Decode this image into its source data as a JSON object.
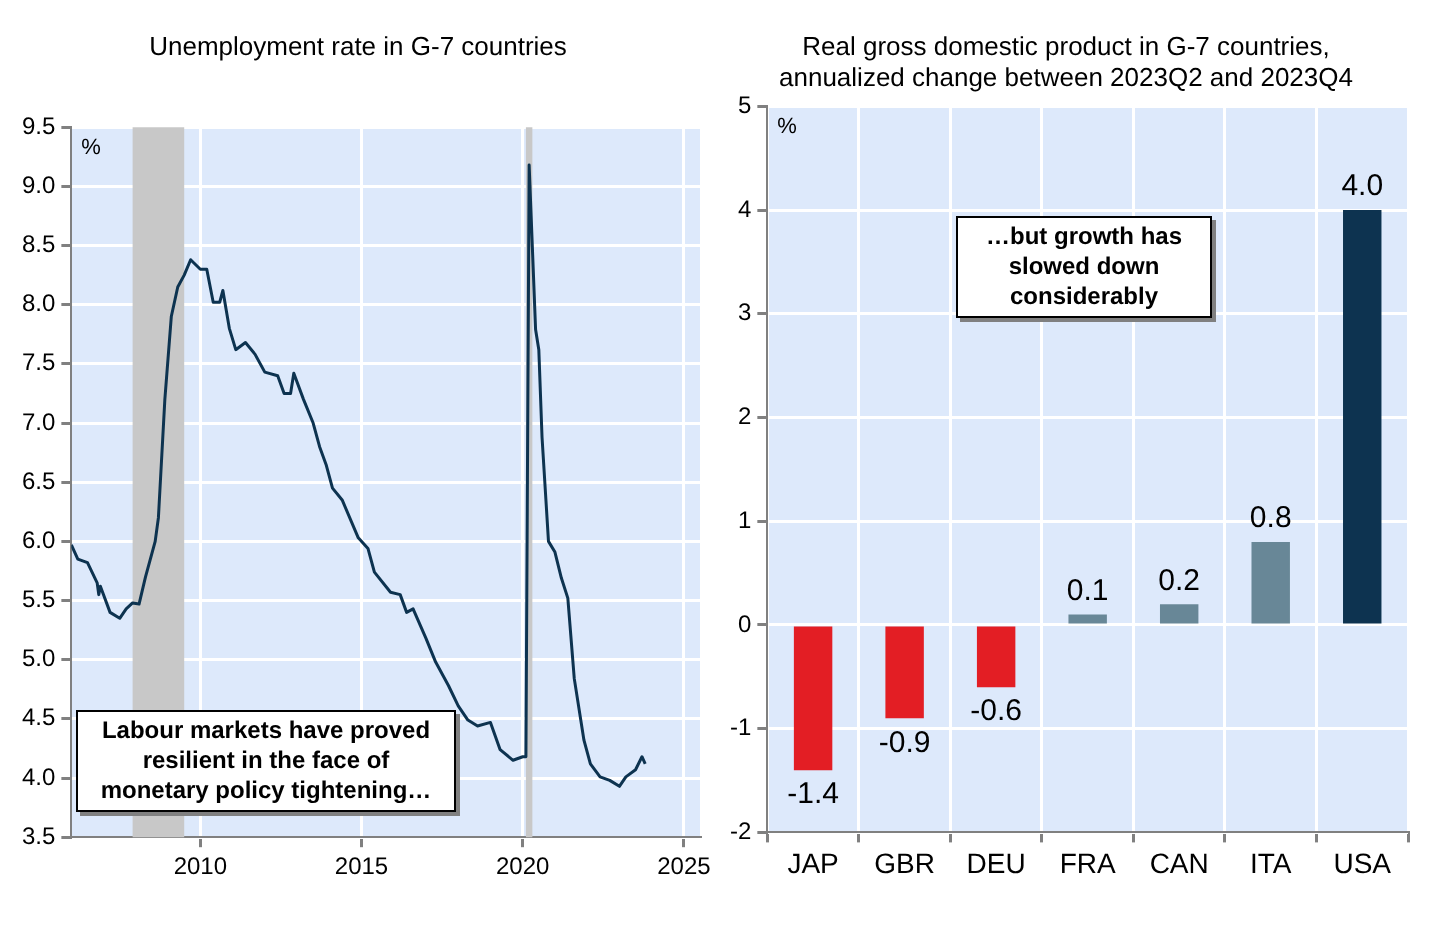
{
  "chart_data": [
    {
      "type": "line",
      "title": "Unemployment rate in G-7 countries",
      "ylabel": "%",
      "x": [
        2006.0,
        2006.2,
        2006.5,
        2006.8,
        2006.85,
        2006.9,
        2007.2,
        2007.5,
        2007.7,
        2007.9,
        2008.1,
        2008.3,
        2008.6,
        2008.7,
        2008.9,
        2009.1,
        2009.3,
        2009.5,
        2009.7,
        2010.0,
        2010.2,
        2010.4,
        2010.6,
        2010.7,
        2010.9,
        2011.1,
        2011.4,
        2011.7,
        2012.0,
        2012.4,
        2012.6,
        2012.8,
        2012.9,
        2013.2,
        2013.5,
        2013.7,
        2013.9,
        2014.1,
        2014.4,
        2014.9,
        2015.2,
        2015.4,
        2015.9,
        2016.2,
        2016.4,
        2016.6,
        2017.0,
        2017.3,
        2017.7,
        2018.0,
        2018.3,
        2018.6,
        2019.0,
        2019.3,
        2019.7,
        2020.0,
        2020.1,
        2020.2,
        2020.4,
        2020.5,
        2020.6,
        2020.8,
        2021.0,
        2021.2,
        2021.4,
        2021.6,
        2021.9,
        2022.1,
        2022.4,
        2022.7,
        2023.0,
        2023.2,
        2023.5,
        2023.7,
        2023.8
      ],
      "series": [
        {
          "color": "#0d3350",
          "values": [
            5.97,
            5.85,
            5.82,
            5.65,
            5.55,
            5.62,
            5.4,
            5.35,
            5.43,
            5.48,
            5.47,
            5.7,
            6.0,
            6.2,
            7.2,
            7.9,
            8.15,
            8.25,
            8.38,
            8.3,
            8.3,
            8.02,
            8.02,
            8.12,
            7.8,
            7.62,
            7.68,
            7.58,
            7.43,
            7.4,
            7.25,
            7.25,
            7.42,
            7.2,
            7.0,
            6.8,
            6.65,
            6.45,
            6.35,
            6.03,
            5.94,
            5.74,
            5.57,
            5.55,
            5.4,
            5.43,
            5.18,
            4.98,
            4.78,
            4.61,
            4.49,
            4.44,
            4.47,
            4.24,
            4.15,
            4.18,
            4.18,
            9.18,
            7.79,
            7.62,
            6.88,
            6.0,
            5.91,
            5.69,
            5.52,
            4.84,
            4.32,
            4.12,
            4.01,
            3.98,
            3.93,
            4.01,
            4.07,
            4.18,
            4.12
          ]
        }
      ],
      "xlim": [
        2006,
        2025.5
      ],
      "xticks": [
        2010,
        2015,
        2020,
        2025
      ],
      "ylim": [
        3.5,
        9.5
      ],
      "yticks": [
        3.5,
        {
          "value": 4,
          "label": "4.0"
        },
        4.5,
        {
          "value": 5,
          "label": "5.0"
        },
        5.5,
        {
          "value": 6,
          "label": "6.0"
        },
        6.5,
        {
          "value": 7,
          "label": "7.0"
        },
        7.5,
        {
          "value": 8,
          "label": "8.0"
        },
        8.5,
        {
          "value": 9,
          "label": "9.0"
        },
        9.5
      ],
      "bands": [
        {
          "axis": "x",
          "from": 2007.9,
          "to": 2009.5,
          "color": "#c8c8c8"
        },
        {
          "axis": "x",
          "from": 2020.1,
          "to": 2020.3,
          "color": "#c8c8c8"
        }
      ],
      "annotations": [
        "Labour markets have proved resilient in the face of monetary policy tightening…"
      ],
      "grid": true,
      "marker": "none",
      "line_style": "solid"
    },
    {
      "type": "bar",
      "title": "Real gross domestic product in G-7 countries, annualized change between 2023Q2 and 2023Q4",
      "ylabel": "%",
      "categories": [
        "JAP",
        "GBR",
        "DEU",
        "FRA",
        "CAN",
        "ITA",
        "USA"
      ],
      "values": [
        -1.4,
        -0.9,
        -0.6,
        0.1,
        0.2,
        0.8,
        4.0
      ],
      "value_labels": [
        "-1.4",
        "-0.9",
        "-0.6",
        "0.1",
        "0.2",
        "0.8",
        "4.0"
      ],
      "colors": [
        "#e31e24",
        "#e31e24",
        "#e31e24",
        "#688797",
        "#688797",
        "#688797",
        "#0d3350"
      ],
      "ylim": [
        -2,
        5
      ],
      "yticks": [
        -2,
        -1,
        0,
        1,
        2,
        3,
        4,
        5
      ],
      "annotations": [
        "…but growth has slowed down considerably"
      ],
      "grid": true
    }
  ]
}
